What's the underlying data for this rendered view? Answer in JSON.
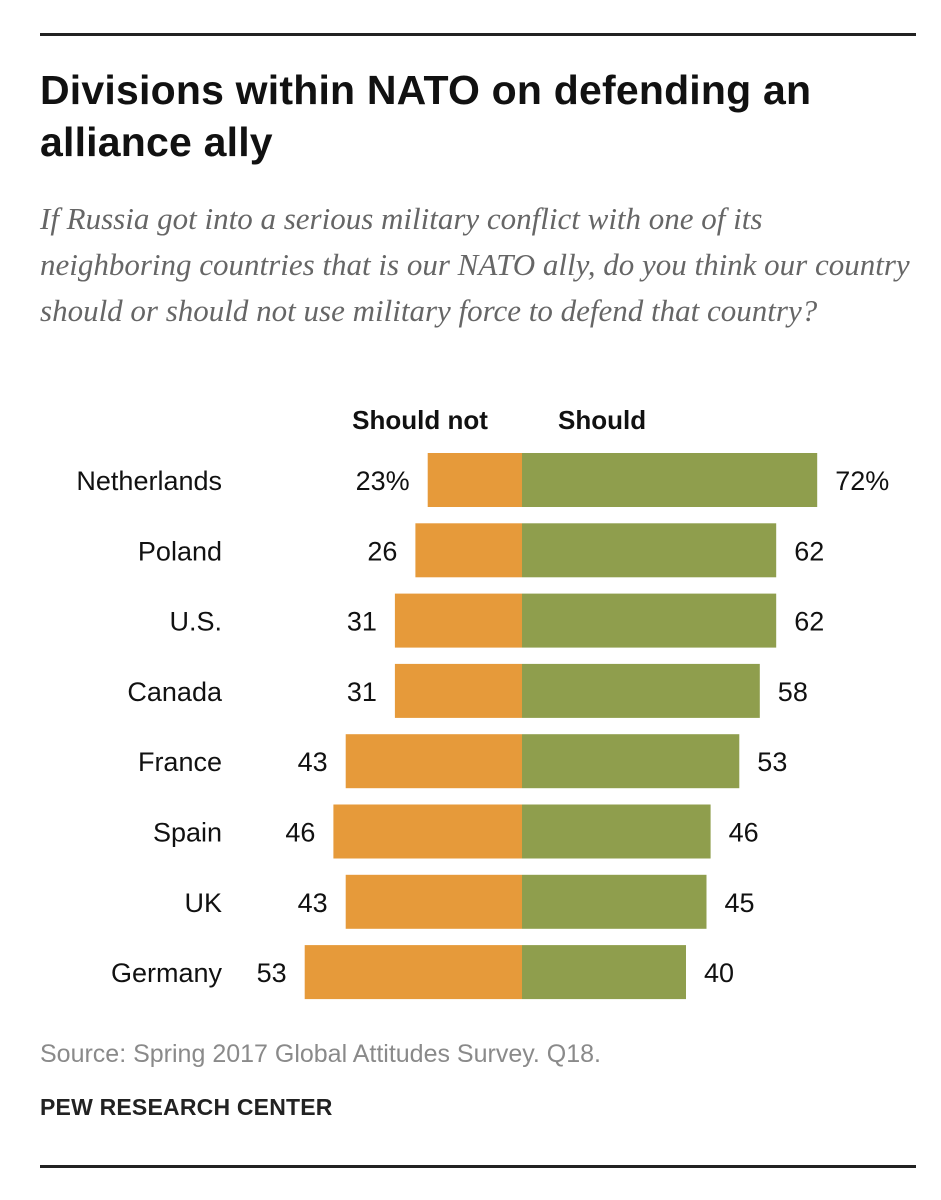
{
  "header": {
    "title": "Divisions within NATO on defending an alliance ally",
    "subtitle": "If Russia got into a serious military conflict with one of its neighboring countries that is our NATO ally, do you think our country should or should not use military force to defend that country?"
  },
  "footer": {
    "source": "Source: Spring 2017 Global Attitudes Survey. Q18.",
    "brand": "PEW RESEARCH CENTER"
  },
  "colors": {
    "should_not": "#E69A3A",
    "should": "#8F9E4D",
    "text": "#111111"
  },
  "chart_data": {
    "type": "bar",
    "orientation": "horizontal-diverging",
    "categories": [
      "Netherlands",
      "Poland",
      "U.S.",
      "Canada",
      "France",
      "Spain",
      "UK",
      "Germany"
    ],
    "series": [
      {
        "name": "Should not",
        "values": [
          23,
          26,
          31,
          31,
          43,
          46,
          43,
          53
        ]
      },
      {
        "name": "Should",
        "values": [
          72,
          62,
          62,
          58,
          53,
          46,
          45,
          40
        ]
      }
    ],
    "value_labels": {
      "Should not": [
        "23%",
        "26",
        "31",
        "31",
        "43",
        "46",
        "43",
        "53"
      ],
      "Should": [
        "72%",
        "62",
        "62",
        "58",
        "53",
        "46",
        "45",
        "40"
      ]
    },
    "title": "Divisions within NATO on defending an alliance ally",
    "xlabel": "",
    "ylabel": "",
    "grid": false
  }
}
